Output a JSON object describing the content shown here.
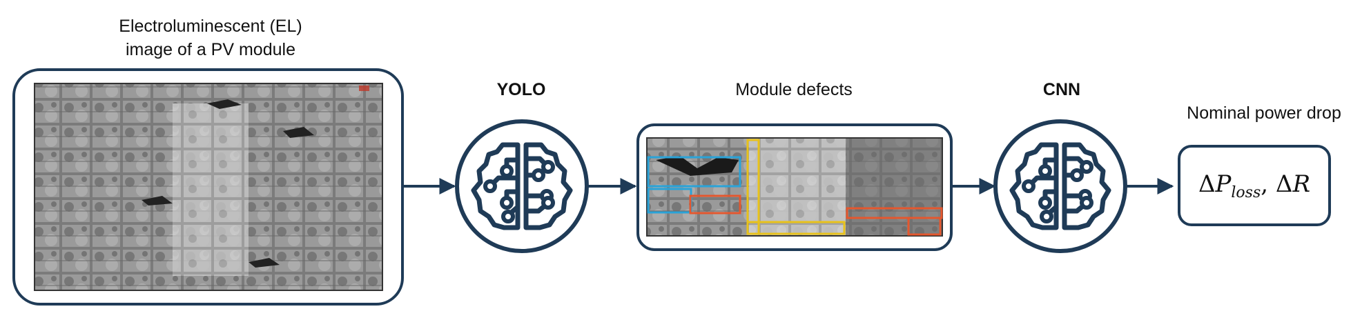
{
  "labels": {
    "el_image": [
      "Electroluminescent (EL)",
      "image of a PV module"
    ],
    "yolo": "YOLO",
    "module_defects": "Module defects",
    "cnn": "CNN",
    "nominal_power_drop": "Nominal power drop"
  },
  "formula": {
    "delta1": "Δ",
    "p": "P",
    "sub": "loss",
    "comma": ", ",
    "delta2": "Δ",
    "r": "R"
  },
  "colors": {
    "stroke": "#1f3b57",
    "defect_blue": "#2aa3d8",
    "defect_orange": "#e4572e",
    "defect_yellow": "#e8c21b"
  },
  "icons": [
    "brain-circuit-icon",
    "brain-circuit-icon"
  ]
}
